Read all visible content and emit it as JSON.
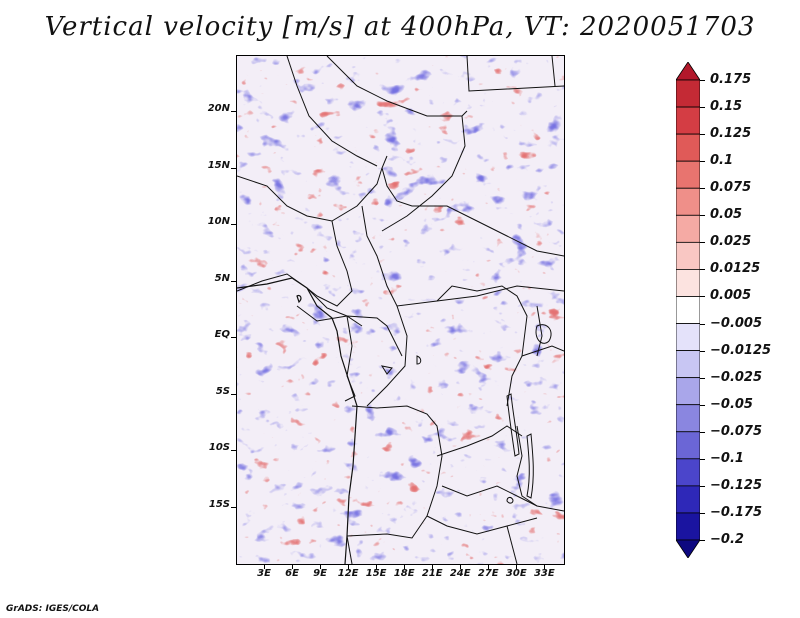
{
  "title": "Vertical velocity [m/s] at 400hPa, VT: 2020051703",
  "map": {
    "variable": "Vertical velocity",
    "units": "m/s",
    "level": "400hPa",
    "valid_time": "2020051703",
    "lat_range": [
      -20,
      25
    ],
    "lon_range": [
      0,
      35
    ],
    "lat_ticks": [
      {
        "value": 20,
        "label": "20N"
      },
      {
        "value": 15,
        "label": "15N"
      },
      {
        "value": 10,
        "label": "10N"
      },
      {
        "value": 5,
        "label": "5N"
      },
      {
        "value": 0,
        "label": "EQ"
      },
      {
        "value": -5,
        "label": "5S"
      },
      {
        "value": -10,
        "label": "10S"
      },
      {
        "value": -15,
        "label": "15S"
      }
    ],
    "lon_ticks": [
      {
        "value": 3,
        "label": "3E"
      },
      {
        "value": 6,
        "label": "6E"
      },
      {
        "value": 9,
        "label": "9E"
      },
      {
        "value": 12,
        "label": "12E"
      },
      {
        "value": 15,
        "label": "15E"
      },
      {
        "value": 18,
        "label": "18E"
      },
      {
        "value": 21,
        "label": "21E"
      },
      {
        "value": 24,
        "label": "24E"
      },
      {
        "value": 27,
        "label": "27E"
      },
      {
        "value": 30,
        "label": "30E"
      },
      {
        "value": 33,
        "label": "33E"
      }
    ]
  },
  "colorbar": {
    "labels": [
      "0.175",
      "0.15",
      "0.125",
      "0.1",
      "0.075",
      "0.05",
      "0.025",
      "0.0125",
      "0.005",
      "−0.005",
      "−0.0125",
      "−0.025",
      "−0.05",
      "−0.075",
      "−0.1",
      "−0.125",
      "−0.175",
      "−0.2"
    ],
    "colors": [
      "#b2182b",
      "#c42a35",
      "#d43d44",
      "#e05a58",
      "#e8746f",
      "#ef8f89",
      "#f5aaa4",
      "#f9c7c3",
      "#fce3e0",
      "#ffffff",
      "#e4e2fa",
      "#c8c6f3",
      "#a9a6ea",
      "#8a86e0",
      "#6b66d6",
      "#4b45cb",
      "#2e28b8",
      "#1a14a0",
      "#0d0880"
    ]
  },
  "credit": "GrADS: IGES/COLA"
}
